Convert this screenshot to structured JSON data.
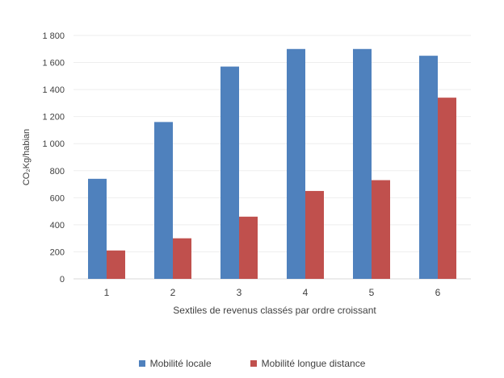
{
  "chart_data": {
    "type": "bar",
    "title": "",
    "xlabel": "Sextiles de revenus classés par ordre croissant",
    "ylabel": "CO₂Kg/habian",
    "ylim": [
      0,
      1800
    ],
    "yticks": [
      0,
      200,
      400,
      600,
      800,
      1000,
      1200,
      1400,
      1600,
      1800
    ],
    "ytick_labels": [
      "0",
      "200",
      "400",
      "600",
      "800",
      "1 000",
      "1 200",
      "1 400",
      "1 600",
      "1 800"
    ],
    "categories": [
      "1",
      "2",
      "3",
      "4",
      "5",
      "6"
    ],
    "grid": true,
    "legend_position": "bottom",
    "series": [
      {
        "name": "Mobilité locale",
        "color": "#4f81bd",
        "values": [
          740,
          1160,
          1570,
          1700,
          1700,
          1650
        ]
      },
      {
        "name": "Mobilité longue distance",
        "color": "#c0504d",
        "values": [
          210,
          300,
          460,
          650,
          730,
          1340
        ]
      }
    ]
  }
}
